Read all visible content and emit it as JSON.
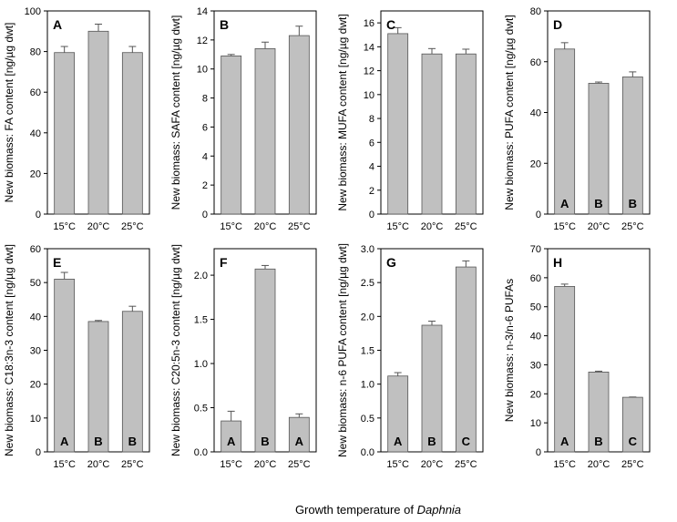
{
  "figure": {
    "x_title": "Growth temperature of ",
    "x_title_italic": "Daphnia"
  },
  "colors": {
    "bar": "#c0c0c0",
    "axis": "#000000"
  },
  "chart_data": [
    {
      "type": "bar",
      "label": "A",
      "ylabel": "New biomass: FA content [ng/µg dwt]",
      "categories": [
        "15°C",
        "20°C",
        "25°C"
      ],
      "values": [
        79.5,
        90.0,
        79.5
      ],
      "errors": [
        3,
        3.5,
        3
      ],
      "ylim": [
        0,
        100
      ],
      "yticks": [
        "0",
        "20",
        "40",
        "60",
        "80",
        "100"
      ],
      "sig": []
    },
    {
      "type": "bar",
      "label": "B",
      "ylabel": "New biomass: SAFA content [ng/µg dwt]",
      "categories": [
        "15°C",
        "20°C",
        "25°C"
      ],
      "values": [
        10.9,
        11.4,
        12.3
      ],
      "errors": [
        0.1,
        0.45,
        0.65
      ],
      "ylim": [
        0,
        14
      ],
      "yticks": [
        "0",
        "2",
        "4",
        "6",
        "8",
        "10",
        "12",
        "14"
      ],
      "sig": []
    },
    {
      "type": "bar",
      "label": "C",
      "ylabel": "New biomass: MUFA content [ng/µg dwt]",
      "categories": [
        "15°C",
        "20°C",
        "25°C"
      ],
      "values": [
        15.1,
        13.4,
        13.4
      ],
      "errors": [
        0.5,
        0.45,
        0.4
      ],
      "ylim": [
        0,
        17
      ],
      "yticks": [
        "0",
        "2",
        "4",
        "6",
        "8",
        "10",
        "12",
        "14",
        "16"
      ],
      "sig": []
    },
    {
      "type": "bar",
      "label": "D",
      "ylabel": "New biomass: PUFA content [ng/µg dwt]",
      "categories": [
        "15°C",
        "20°C",
        "25°C"
      ],
      "values": [
        65.0,
        51.5,
        54.0
      ],
      "errors": [
        2.5,
        0.5,
        2.0
      ],
      "ylim": [
        0,
        80
      ],
      "yticks": [
        "0",
        "20",
        "40",
        "60",
        "80"
      ],
      "sig": [
        "A",
        "B",
        "B"
      ]
    },
    {
      "type": "bar",
      "label": "E",
      "ylabel": "New biomass: C18:3n-3 content [ng/µg dwt]",
      "categories": [
        "15°C",
        "20°C",
        "25°C"
      ],
      "values": [
        51.0,
        38.5,
        41.5
      ],
      "errors": [
        2.0,
        0.3,
        1.5
      ],
      "ylim": [
        0,
        60
      ],
      "yticks": [
        "0",
        "10",
        "20",
        "30",
        "40",
        "50",
        "60"
      ],
      "sig": [
        "A",
        "B",
        "B"
      ]
    },
    {
      "type": "bar",
      "label": "F",
      "ylabel": "New biomass: C20:5n-3 content [ng/µg dwt]",
      "categories": [
        "15°C",
        "20°C",
        "25°C"
      ],
      "values": [
        0.35,
        2.07,
        0.39
      ],
      "errors": [
        0.11,
        0.04,
        0.04
      ],
      "ylim": [
        0,
        2.3
      ],
      "yticks": [
        "0.0",
        "0.5",
        "1.0",
        "1.5",
        "2.0"
      ],
      "sig": [
        "A",
        "B",
        "A"
      ]
    },
    {
      "type": "bar",
      "label": "G",
      "ylabel": "New biomass: n-6 PUFA content [ng/µg dwt]",
      "categories": [
        "15°C",
        "20°C",
        "25°C"
      ],
      "values": [
        1.12,
        1.87,
        2.73
      ],
      "errors": [
        0.05,
        0.06,
        0.09
      ],
      "ylim": [
        0,
        3.0
      ],
      "yticks": [
        "0.0",
        "0.5",
        "1.0",
        "1.5",
        "2.0",
        "2.5",
        "3.0"
      ],
      "sig": [
        "A",
        "B",
        "C"
      ]
    },
    {
      "type": "bar",
      "label": "H",
      "ylabel": "New biomass: n-3/n-6 PUFAs",
      "categories": [
        "15°C",
        "20°C",
        "25°C"
      ],
      "values": [
        57.0,
        27.5,
        18.8
      ],
      "errors": [
        0.8,
        0.3,
        0.1
      ],
      "ylim": [
        0,
        70
      ],
      "yticks": [
        "0",
        "10",
        "20",
        "30",
        "40",
        "50",
        "60",
        "70"
      ],
      "sig": [
        "A",
        "B",
        "C"
      ]
    }
  ]
}
